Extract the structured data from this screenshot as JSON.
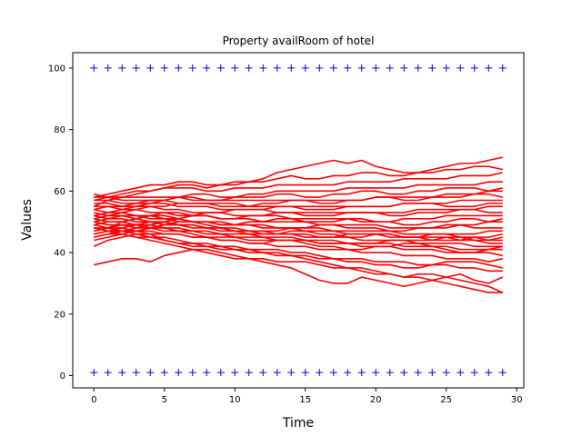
{
  "chart_data": {
    "type": "line",
    "title": "Property availRoom of hotel",
    "xlabel": "Time",
    "ylabel": "Values",
    "xlim": [
      -1.5,
      30.5
    ],
    "ylim": [
      -4,
      105
    ],
    "xticks": [
      0,
      5,
      10,
      15,
      20,
      25,
      30
    ],
    "yticks": [
      0,
      20,
      40,
      60,
      80,
      100
    ],
    "grid": false,
    "legend": "none",
    "x": [
      0,
      1,
      2,
      3,
      4,
      5,
      6,
      7,
      8,
      9,
      10,
      11,
      12,
      13,
      14,
      15,
      16,
      17,
      18,
      19,
      20,
      21,
      22,
      23,
      24,
      25,
      26,
      27,
      28,
      29
    ],
    "colors": {
      "series": "#ff0000",
      "bounds": "#0000ff"
    },
    "bounds": [
      {
        "values": [
          100,
          100,
          100,
          100,
          100,
          100,
          100,
          100,
          100,
          100,
          100,
          100,
          100,
          100,
          100,
          100,
          100,
          100,
          100,
          100,
          100,
          100,
          100,
          100,
          100,
          100,
          100,
          100,
          100,
          100
        ],
        "marker": "+"
      },
      {
        "values": [
          1,
          1,
          1,
          1,
          1,
          1,
          1,
          1,
          1,
          1,
          1,
          1,
          1,
          1,
          1,
          1,
          1,
          1,
          1,
          1,
          1,
          1,
          1,
          1,
          1,
          1,
          1,
          1,
          1,
          1
        ],
        "marker": "+"
      }
    ],
    "series": [
      {
        "values": [
          36,
          37,
          38,
          38,
          37,
          39,
          40,
          41,
          41,
          40,
          39,
          38,
          38,
          37,
          37,
          37,
          36,
          35,
          35,
          34,
          33,
          33,
          32,
          33,
          33,
          32,
          31,
          30,
          29,
          27
        ]
      },
      {
        "values": [
          42,
          44,
          45,
          46,
          46,
          44,
          43,
          42,
          42,
          41,
          41,
          40,
          40,
          39,
          39,
          38,
          37,
          36,
          35,
          35,
          34,
          33,
          32,
          32,
          31,
          30,
          29,
          28,
          27,
          27
        ]
      },
      {
        "values": [
          45,
          46,
          46,
          45,
          44,
          43,
          42,
          41,
          40,
          39,
          38,
          38,
          37,
          36,
          35,
          33,
          31,
          30,
          30,
          32,
          31,
          30,
          29,
          30,
          31,
          32,
          33,
          31,
          30,
          32
        ]
      },
      {
        "values": [
          46,
          47,
          46,
          45,
          45,
          44,
          43,
          43,
          42,
          42,
          41,
          41,
          40,
          40,
          39,
          39,
          38,
          38,
          37,
          37,
          36,
          36,
          35,
          35,
          36,
          36,
          35,
          35,
          34,
          34
        ]
      },
      {
        "values": [
          48,
          48,
          47,
          46,
          45,
          45,
          44,
          43,
          43,
          42,
          42,
          41,
          41,
          41,
          40,
          40,
          39,
          38,
          38,
          38,
          37,
          37,
          37,
          36,
          36,
          37,
          37,
          37,
          36,
          35
        ]
      },
      {
        "values": [
          49,
          48,
          48,
          47,
          47,
          46,
          46,
          45,
          45,
          44,
          44,
          43,
          43,
          42,
          42,
          42,
          41,
          41,
          41,
          40,
          40,
          40,
          39,
          39,
          39,
          38,
          38,
          38,
          37,
          38
        ]
      },
      {
        "values": [
          50,
          49,
          49,
          48,
          48,
          48,
          47,
          47,
          46,
          46,
          45,
          45,
          45,
          44,
          44,
          44,
          43,
          43,
          43,
          42,
          42,
          42,
          41,
          41,
          41,
          40,
          40,
          40,
          40,
          39
        ]
      },
      {
        "values": [
          47,
          48,
          49,
          49,
          48,
          47,
          47,
          46,
          45,
          44,
          44,
          43,
          43,
          44,
          44,
          43,
          42,
          42,
          41,
          41,
          42,
          42,
          43,
          43,
          42,
          41,
          40,
          40,
          41,
          41
        ]
      },
      {
        "values": [
          51,
          50,
          50,
          49,
          49,
          48,
          48,
          47,
          47,
          46,
          46,
          46,
          45,
          45,
          45,
          44,
          44,
          44,
          43,
          43,
          43,
          43,
          42,
          42,
          42,
          42,
          41,
          41,
          41,
          42
        ]
      },
      {
        "values": [
          52,
          51,
          51,
          50,
          50,
          50,
          49,
          49,
          48,
          48,
          47,
          47,
          47,
          46,
          46,
          46,
          45,
          45,
          45,
          44,
          44,
          44,
          44,
          43,
          43,
          43,
          43,
          42,
          42,
          42
        ]
      },
      {
        "values": [
          48,
          47,
          47,
          47,
          46,
          46,
          46,
          45,
          45,
          45,
          45,
          44,
          44,
          44,
          44,
          44,
          43,
          43,
          43,
          43,
          43,
          44,
          44,
          44,
          44,
          45,
          45,
          44,
          43,
          43
        ]
      },
      {
        "values": [
          53,
          52,
          52,
          52,
          51,
          51,
          50,
          50,
          50,
          49,
          49,
          49,
          48,
          48,
          48,
          47,
          47,
          47,
          46,
          46,
          46,
          46,
          45,
          45,
          45,
          45,
          44,
          44,
          44,
          44
        ]
      },
      {
        "values": [
          50,
          51,
          52,
          51,
          50,
          49,
          49,
          48,
          48,
          47,
          47,
          46,
          46,
          46,
          47,
          47,
          46,
          46,
          45,
          45,
          46,
          46,
          45,
          45,
          46,
          46,
          45,
          45,
          44,
          45
        ]
      },
      {
        "values": [
          46,
          47,
          48,
          49,
          50,
          50,
          49,
          49,
          48,
          48,
          47,
          47,
          46,
          46,
          46,
          45,
          45,
          45,
          46,
          46,
          46,
          45,
          45,
          45,
          44,
          44,
          44,
          45,
          45,
          46
        ]
      },
      {
        "values": [
          54,
          53,
          53,
          52,
          52,
          51,
          51,
          50,
          50,
          50,
          49,
          49,
          49,
          48,
          48,
          48,
          48,
          47,
          47,
          47,
          47,
          47,
          46,
          46,
          46,
          46,
          46,
          46,
          47,
          47
        ]
      },
      {
        "values": [
          44,
          45,
          46,
          47,
          48,
          49,
          50,
          50,
          49,
          48,
          48,
          47,
          47,
          47,
          48,
          48,
          49,
          49,
          48,
          48,
          48,
          47,
          47,
          48,
          48,
          49,
          49,
          48,
          48,
          48
        ]
      },
      {
        "values": [
          55,
          55,
          54,
          54,
          53,
          53,
          52,
          52,
          52,
          51,
          51,
          51,
          50,
          50,
          50,
          50,
          49,
          49,
          49,
          49,
          49,
          48,
          48,
          48,
          48,
          48,
          49,
          49,
          50,
          50
        ]
      },
      {
        "values": [
          47,
          48,
          50,
          51,
          52,
          52,
          51,
          50,
          50,
          49,
          49,
          50,
          50,
          51,
          51,
          50,
          50,
          50,
          51,
          51,
          50,
          50,
          49,
          49,
          50,
          50,
          51,
          51,
          50,
          51
        ]
      },
      {
        "values": [
          56,
          56,
          55,
          55,
          55,
          54,
          54,
          53,
          53,
          53,
          52,
          52,
          52,
          52,
          51,
          51,
          51,
          51,
          51,
          50,
          50,
          50,
          51,
          51,
          51,
          52,
          52,
          52,
          52,
          52
        ]
      },
      {
        "values": [
          49,
          50,
          50,
          51,
          52,
          53,
          53,
          52,
          52,
          51,
          51,
          52,
          52,
          53,
          53,
          52,
          52,
          52,
          53,
          53,
          53,
          52,
          52,
          53,
          53,
          53,
          54,
          54,
          53,
          53
        ]
      },
      {
        "values": [
          57,
          57,
          56,
          56,
          56,
          56,
          55,
          55,
          55,
          54,
          54,
          54,
          54,
          53,
          53,
          53,
          53,
          53,
          53,
          53,
          53,
          53,
          53,
          54,
          54,
          54,
          54,
          54,
          55,
          55
        ]
      },
      {
        "values": [
          45,
          46,
          47,
          48,
          49,
          50,
          51,
          52,
          53,
          53,
          54,
          54,
          54,
          55,
          55,
          54,
          54,
          54,
          55,
          55,
          55,
          55,
          56,
          56,
          56,
          55,
          55,
          55,
          56,
          56
        ]
      },
      {
        "values": [
          58,
          58,
          57,
          57,
          57,
          57,
          56,
          56,
          56,
          56,
          56,
          55,
          55,
          55,
          55,
          55,
          55,
          55,
          55,
          55,
          55,
          55,
          56,
          56,
          56,
          56,
          57,
          57,
          57,
          57
        ]
      },
      {
        "values": [
          51,
          52,
          53,
          54,
          55,
          55,
          56,
          56,
          56,
          55,
          55,
          55,
          56,
          56,
          57,
          57,
          56,
          56,
          57,
          57,
          58,
          58,
          57,
          57,
          58,
          58,
          58,
          59,
          59,
          58
        ]
      },
      {
        "values": [
          59,
          58,
          58,
          58,
          58,
          58,
          58,
          57,
          57,
          57,
          57,
          57,
          57,
          57,
          57,
          57,
          57,
          57,
          57,
          57,
          58,
          58,
          58,
          58,
          58,
          59,
          59,
          59,
          60,
          60
        ]
      },
      {
        "values": [
          54,
          55,
          55,
          56,
          57,
          57,
          58,
          58,
          57,
          57,
          58,
          58,
          58,
          59,
          59,
          58,
          58,
          59,
          59,
          60,
          60,
          59,
          59,
          60,
          60,
          61,
          61,
          61,
          60,
          61
        ]
      },
      {
        "values": [
          52,
          53,
          54,
          55,
          56,
          57,
          58,
          59,
          59,
          58,
          58,
          59,
          59,
          60,
          60,
          60,
          60,
          60,
          61,
          61,
          61,
          61,
          61,
          62,
          62,
          62,
          62,
          62,
          63,
          63
        ]
      },
      {
        "values": [
          57,
          58,
          59,
          60,
          60,
          61,
          61,
          61,
          60,
          60,
          61,
          61,
          61,
          62,
          62,
          62,
          62,
          62,
          63,
          63,
          63,
          63,
          64,
          64,
          64,
          64,
          65,
          65,
          65,
          66
        ]
      },
      {
        "values": [
          55,
          57,
          58,
          59,
          60,
          61,
          62,
          62,
          61,
          62,
          62,
          63,
          63,
          64,
          65,
          64,
          64,
          65,
          65,
          66,
          66,
          65,
          65,
          66,
          66,
          67,
          67,
          68,
          68,
          67
        ]
      },
      {
        "values": [
          58,
          59,
          60,
          61,
          62,
          62,
          63,
          63,
          62,
          62,
          63,
          63,
          64,
          66,
          67,
          68,
          69,
          70,
          69,
          70,
          68,
          67,
          66,
          66,
          67,
          68,
          69,
          69,
          70,
          71
        ]
      }
    ]
  }
}
